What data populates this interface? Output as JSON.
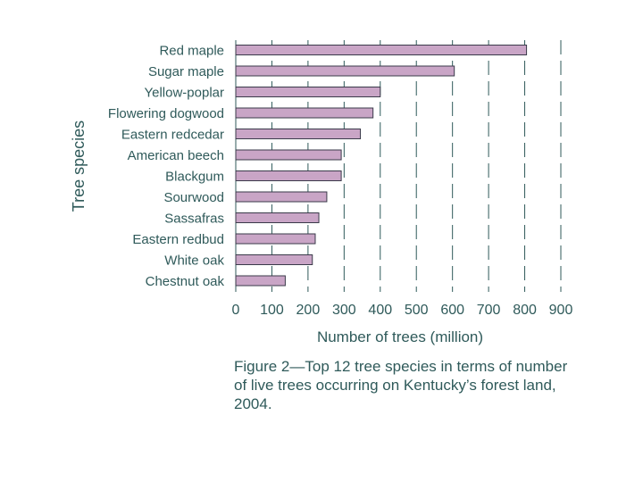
{
  "chart_data": {
    "type": "bar",
    "orientation": "horizontal",
    "categories": [
      "Red maple",
      "Sugar maple",
      "Yellow-poplar",
      "Flowering dogwood",
      "Eastern redcedar",
      "American beech",
      "Blackgum",
      "Sourwood",
      "Sassafras",
      "Eastern redbud",
      "White oak",
      "Chestnut oak"
    ],
    "values": [
      805,
      605,
      400,
      380,
      345,
      292,
      292,
      252,
      230,
      220,
      212,
      137
    ],
    "xlabel": "Number of trees (million)",
    "ylabel": "Tree species",
    "xlim": [
      0,
      900
    ],
    "xticks": [
      0,
      100,
      200,
      300,
      400,
      500,
      600,
      700,
      800,
      900
    ],
    "grid": "vertical dashed",
    "bar_color": "#c9a5c6"
  },
  "caption": "Figure 2—Top 12 tree species in terms of number of live trees occurring on Kentucky’s forest land, 2004."
}
